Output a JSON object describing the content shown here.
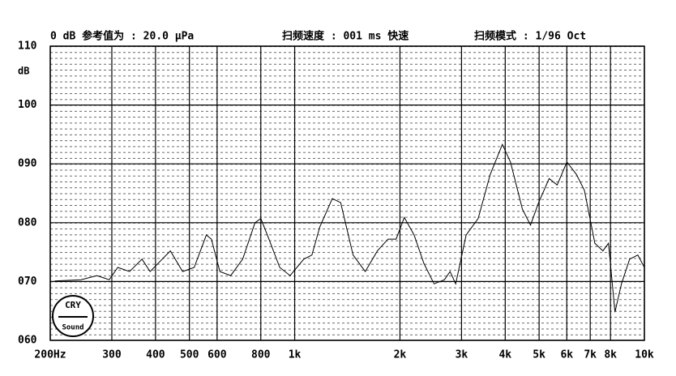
{
  "chart_data": {
    "type": "line",
    "annotations": [
      "0 dB 参考值为 : 20.0 μPa",
      "扫频速度 : 001 ms 快速",
      "扫频模式 : 1/96  Oct"
    ],
    "y_label": "dB",
    "logo": [
      "CRY",
      "Sound"
    ],
    "x_log": true,
    "grid": true,
    "color": "#000000",
    "xlim": [
      200,
      10000
    ],
    "ylim": [
      60,
      110
    ],
    "xticks": [
      {
        "value": 200,
        "label": "200Hz"
      },
      300,
      400,
      500,
      600,
      800,
      {
        "value": 1000,
        "label": "1k"
      },
      {
        "value": 2000,
        "label": "2k"
      },
      {
        "value": 3000,
        "label": "3k"
      },
      {
        "value": 4000,
        "label": "4k"
      },
      {
        "value": 5000,
        "label": "5k"
      },
      {
        "value": 6000,
        "label": "6k"
      },
      {
        "value": 7000,
        "label": "7k"
      },
      {
        "value": 8000,
        "label": "8k"
      },
      {
        "value": 10000,
        "label": "10k"
      }
    ],
    "yticks": [
      {
        "value": 60,
        "label": "060"
      },
      {
        "value": 70,
        "label": "070"
      },
      {
        "value": 80,
        "label": "080"
      },
      {
        "value": 90,
        "label": "090"
      },
      100,
      110
    ],
    "x": [
      206,
      245,
      272,
      295,
      312,
      337,
      366,
      386,
      418,
      441,
      478,
      516,
      559,
      578,
      611,
      656,
      710,
      770,
      800,
      844,
      906,
      970,
      1062,
      1120,
      1180,
      1281,
      1354,
      1469,
      1591,
      1724,
      1849,
      1950,
      2058,
      2195,
      2340,
      2503,
      2681,
      2783,
      2887,
      3093,
      3346,
      3624,
      3925,
      4140,
      4479,
      4724,
      4983,
      5340,
      5632,
      6005,
      6393,
      6738,
      7218,
      7610,
      7895,
      8237,
      8597,
      9073,
      9577,
      10000
    ],
    "values": [
      70.1,
      70.3,
      71,
      70.3,
      72.4,
      71.7,
      73.8,
      71.7,
      73.8,
      75.2,
      71.7,
      72.4,
      77.9,
      77.2,
      71.7,
      71,
      73.8,
      80,
      80.7,
      77.2,
      72.4,
      71,
      73.8,
      74.5,
      79.3,
      84.1,
      83.4,
      74.5,
      71.7,
      75.2,
      77.2,
      77.2,
      80.9,
      77.9,
      73.1,
      69.6,
      70.3,
      71.7,
      69.6,
      77.9,
      80.7,
      88.2,
      93.3,
      90.3,
      82.3,
      79.6,
      83.4,
      87.5,
      86.4,
      90.3,
      88.2,
      85.5,
      76.5,
      75.2,
      76.5,
      64.8,
      69.6,
      73.8,
      74.5,
      72.4
    ]
  }
}
